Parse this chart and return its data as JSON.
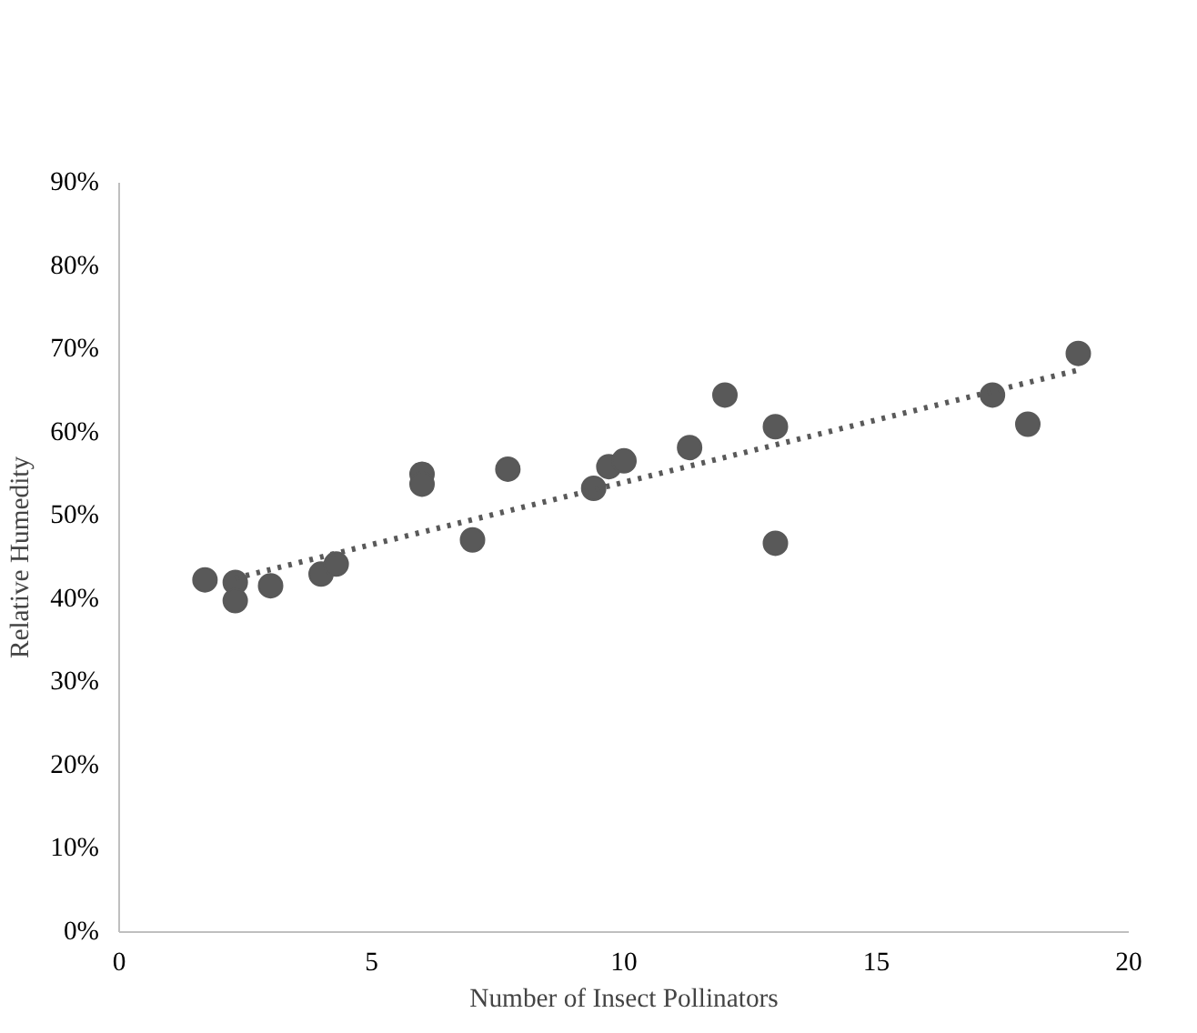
{
  "chart_data": {
    "type": "scatter",
    "xlabel": "Number of Insect Pollinators",
    "ylabel": "Relative Humedity",
    "xlim": [
      0,
      20
    ],
    "xticks": [
      0,
      5,
      10,
      15,
      20
    ],
    "ylim": [
      0,
      90
    ],
    "yticks": [
      {
        "value": 0,
        "label": "0%"
      },
      {
        "value": 10,
        "label": "10%"
      },
      {
        "value": 20,
        "label": "20%"
      },
      {
        "value": 30,
        "label": "30%"
      },
      {
        "value": 40,
        "label": "40%"
      },
      {
        "value": 50,
        "label": "50%"
      },
      {
        "value": 60,
        "label": "60%"
      },
      {
        "value": 70,
        "label": "70%"
      },
      {
        "value": 80,
        "label": "80%"
      },
      {
        "value": 90,
        "label": "90%"
      }
    ],
    "grid": false,
    "series": [
      {
        "marker": "circle",
        "color": "#595959",
        "x": [
          1.7,
          2.3,
          2.3,
          3.0,
          4.0,
          4.3,
          6.0,
          6.0,
          7.0,
          7.7,
          9.4,
          9.7,
          10.0,
          11.3,
          12.0,
          13.0,
          13.0,
          17.3,
          18.0,
          19.0
        ],
        "values": [
          42.3,
          42,
          39.8,
          41.6,
          43,
          44.2,
          55,
          53.8,
          47.1,
          55.6,
          53.3,
          55.9,
          56.6,
          58.2,
          64.5,
          60.7,
          46.7,
          64.5,
          61,
          69.5
        ]
      },
      {
        "type": "line",
        "color": "#595959",
        "line_style": "dotted",
        "x": [
          2.3,
          19.0
        ],
        "values": [
          42.5,
          67.5
        ]
      }
    ]
  }
}
